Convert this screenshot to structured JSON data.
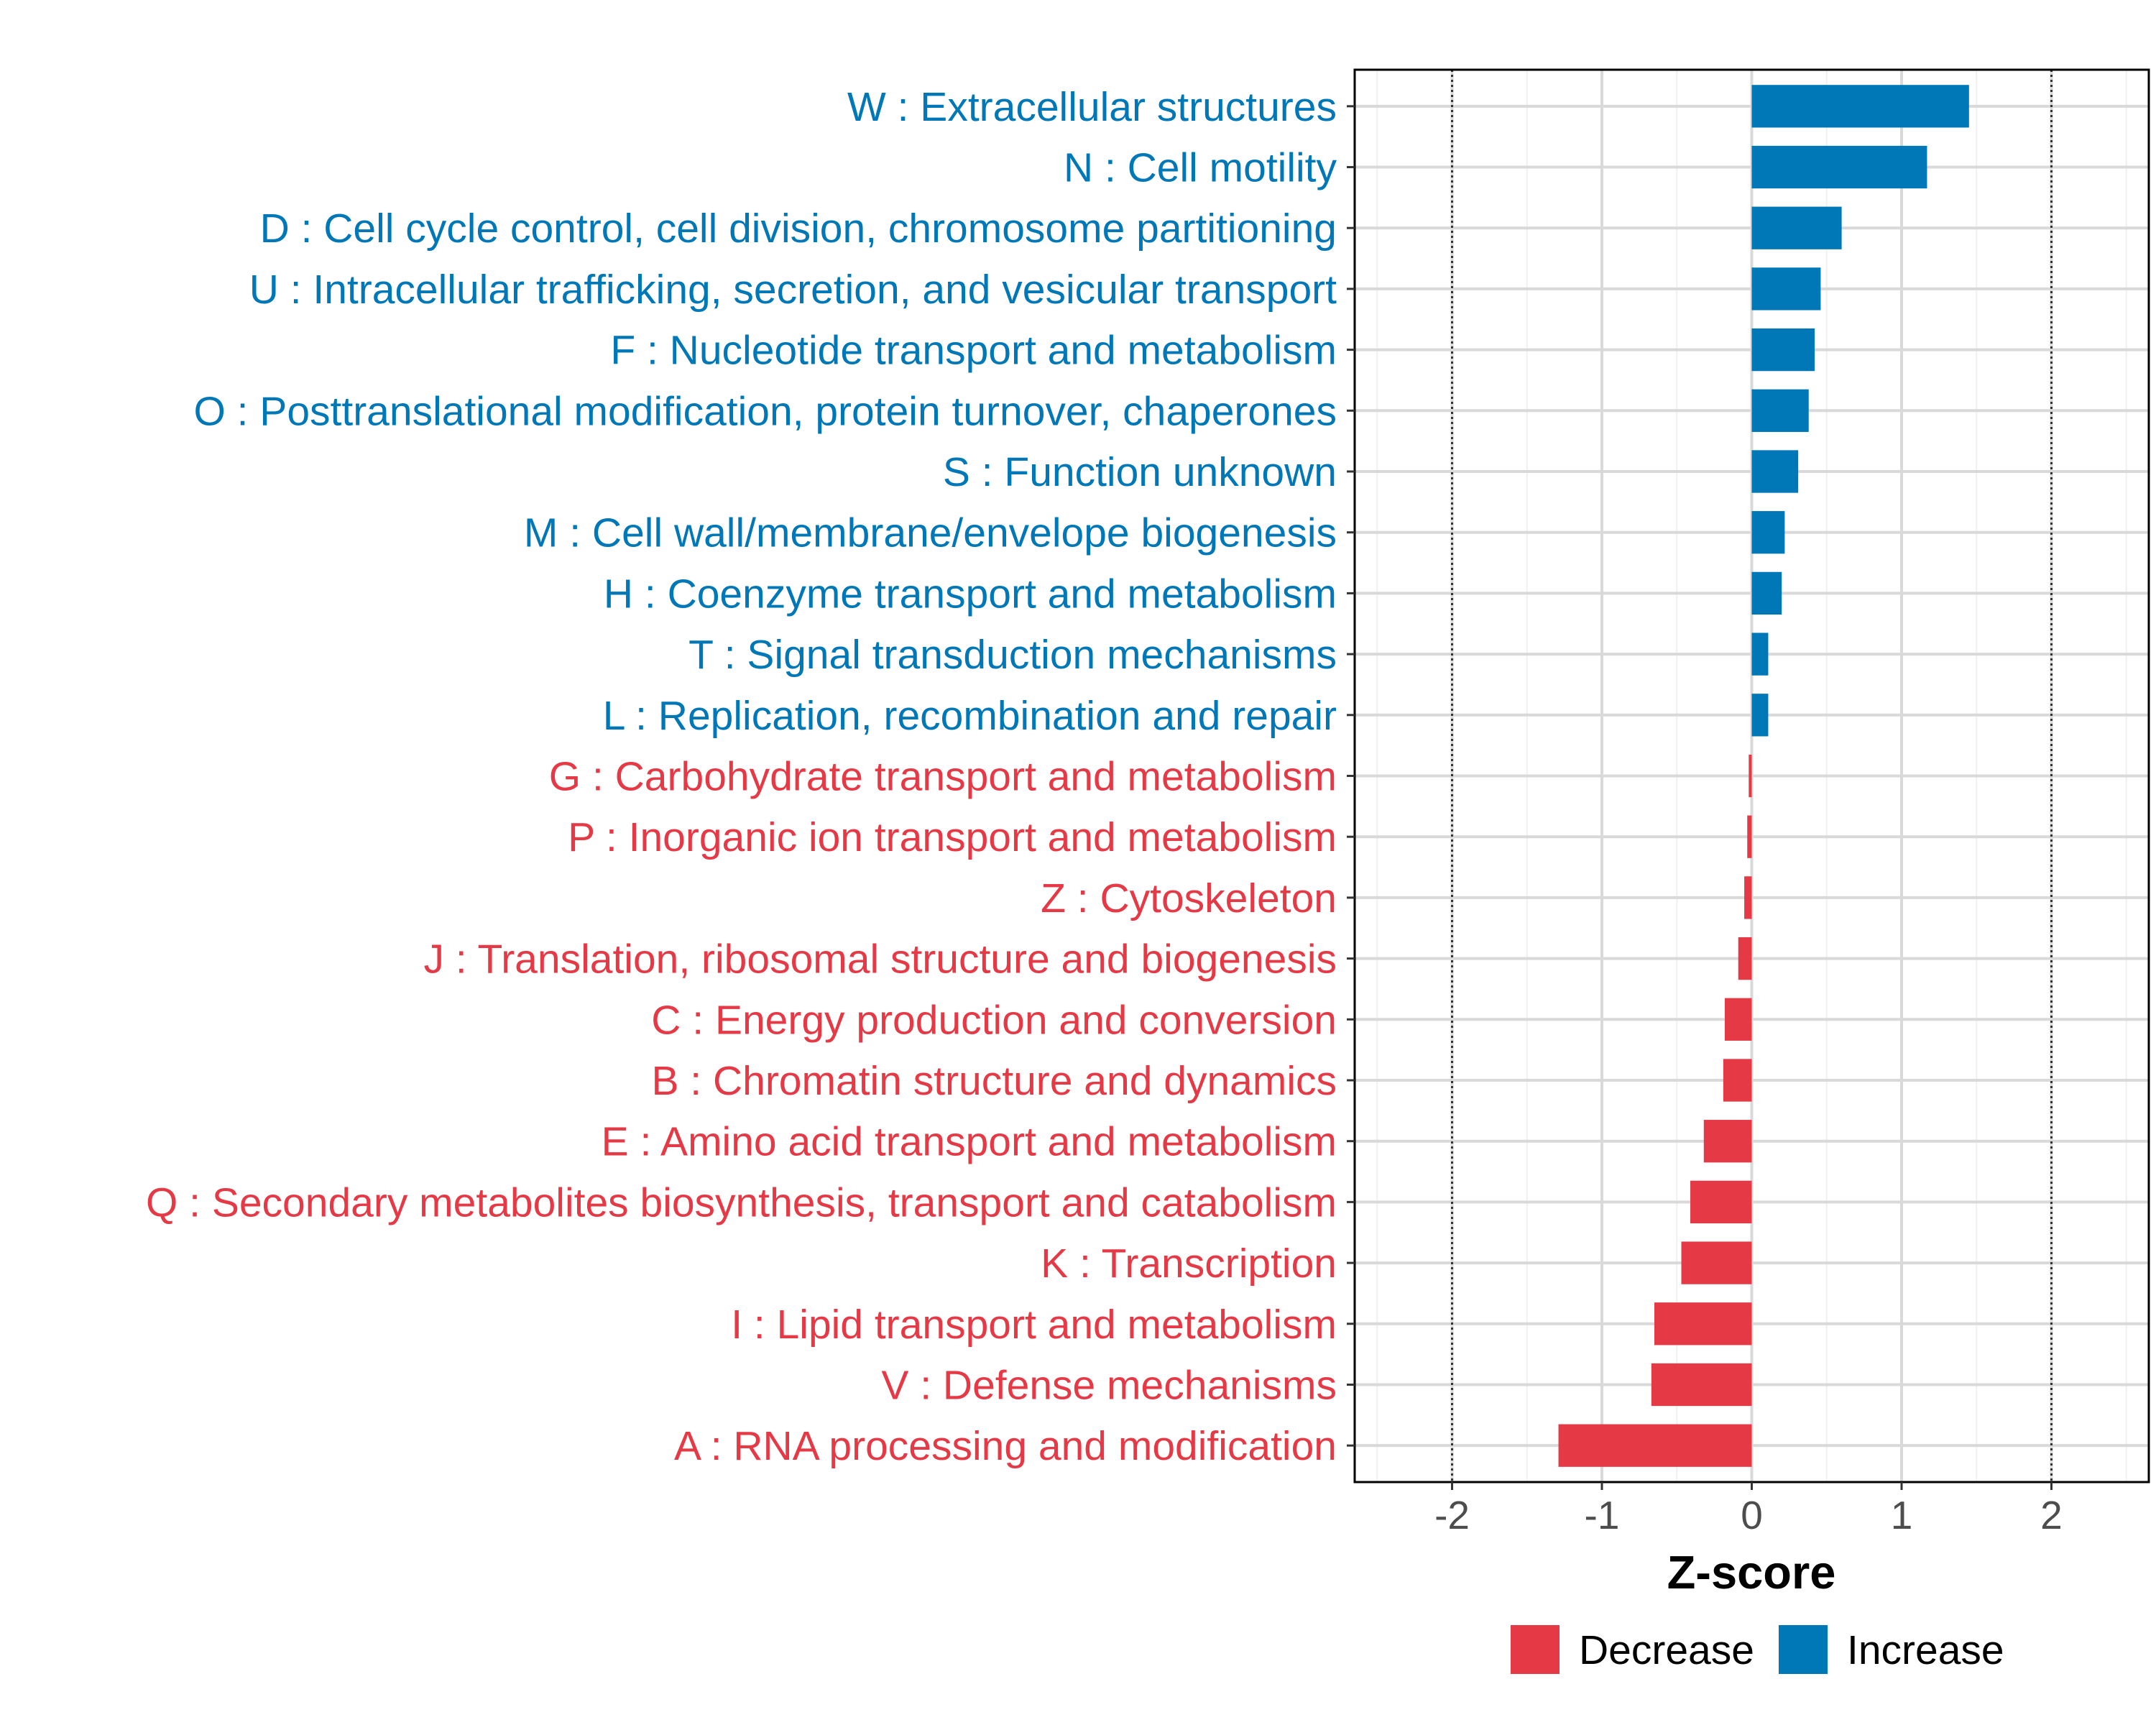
{
  "chart_data": {
    "type": "bar",
    "orientation": "horizontal",
    "title": "",
    "xlabel": "Z-score",
    "ylabel": "",
    "xlim": [
      -2.65,
      2.65
    ],
    "x_ticks": [
      "-2",
      "-1",
      "0",
      "1",
      "2"
    ],
    "x_tick_values": [
      -2,
      -1,
      0,
      1,
      2
    ],
    "reference_lines": [
      -2,
      2
    ],
    "grid": true,
    "legend_position": "bottom",
    "legend": [
      {
        "label": "Decrease",
        "color": "#e63946"
      },
      {
        "label": "Increase",
        "color": "#0077b6"
      }
    ],
    "colors": {
      "Increase": "#0077b6",
      "Decrease": "#e63946"
    },
    "categories": [
      "W : Extracellular structures",
      "N : Cell motility",
      "D : Cell cycle control, cell division, chromosome partitioning",
      "U : Intracellular trafficking, secretion, and vesicular transport",
      "F : Nucleotide transport and metabolism",
      "O : Posttranslational modification, protein turnover, chaperones",
      "S : Function unknown",
      "M : Cell wall/membrane/envelope biogenesis",
      "H : Coenzyme transport and metabolism",
      "T : Signal transduction mechanisms",
      "L : Replication, recombination and repair",
      "G : Carbohydrate transport and metabolism",
      "P : Inorganic ion transport and metabolism",
      "Z : Cytoskeleton",
      "J : Translation, ribosomal structure and biogenesis",
      "C : Energy production and conversion",
      "B : Chromatin structure and dynamics",
      "E : Amino acid transport and metabolism",
      "Q : Secondary metabolites biosynthesis, transport and catabolism",
      "K : Transcription",
      "I : Lipid transport and metabolism",
      "V : Defense mechanisms",
      "A : RNA processing and modification"
    ],
    "values": [
      1.45,
      1.17,
      0.6,
      0.46,
      0.42,
      0.38,
      0.31,
      0.22,
      0.2,
      0.11,
      0.11,
      -0.02,
      -0.03,
      -0.05,
      -0.09,
      -0.18,
      -0.19,
      -0.32,
      -0.41,
      -0.47,
      -0.65,
      -0.67,
      -1.29
    ],
    "direction": [
      "Increase",
      "Increase",
      "Increase",
      "Increase",
      "Increase",
      "Increase",
      "Increase",
      "Increase",
      "Increase",
      "Increase",
      "Increase",
      "Decrease",
      "Decrease",
      "Decrease",
      "Decrease",
      "Decrease",
      "Decrease",
      "Decrease",
      "Decrease",
      "Decrease",
      "Decrease",
      "Decrease",
      "Decrease"
    ]
  }
}
